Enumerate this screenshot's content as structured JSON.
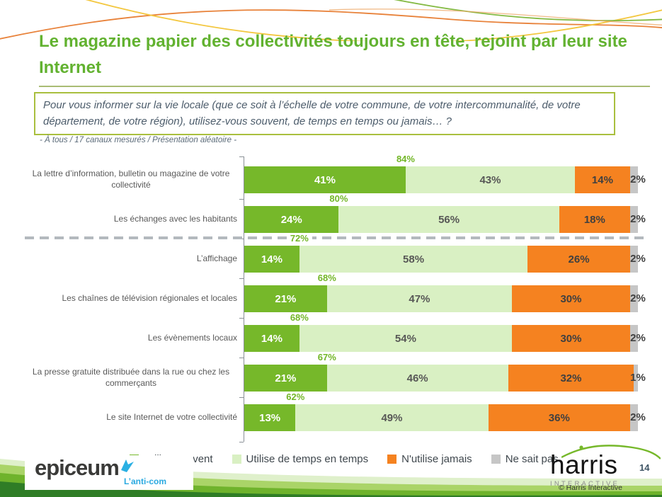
{
  "slide": {
    "title": "Le magazine papier des collectivités toujours en tête, rejoint par leur site Internet",
    "question": "Pour vous informer sur la vie locale (que ce soit à l’échelle de votre commune, de votre intercommunalité, de votre département, de votre région), utilisez-vous souvent, de temps en temps ou jamais… ?",
    "note": "- À tous / 17 canaux mesurés / Présentation aléatoire -",
    "page_number": "14",
    "copyright": "© Harris Interactive"
  },
  "logos": {
    "epiceum_name": "epiceum",
    "epiceum_sub": "L’anti-com",
    "harris_name": "harris",
    "harris_sub": "INTERACTIVE"
  },
  "theme": {
    "title_green": "#62b230",
    "question_border_green": "#a9bf3e",
    "total_label_green": "#72b626",
    "dash_gray": "#b3b9be",
    "epiceum_cyan": "#29a9e0"
  },
  "chart_data": {
    "type": "bar",
    "orientation": "horizontal",
    "stacked": true,
    "xlim": [
      0,
      100
    ],
    "categories": [
      "La lettre d’information, bulletin ou magazine de votre collectivité",
      "Les échanges avec les habitants",
      "L’affichage",
      "Les chaînes de télévision régionales et locales",
      "Les évènements locaux",
      "La presse gratuite distribuée dans la rue ou chez les commerçants",
      "Le site Internet de votre collectivité"
    ],
    "series": [
      {
        "key": "utilise-souvent",
        "name": "Utilise souvent",
        "color": "#76b82a",
        "values": [
          41,
          24,
          14,
          21,
          14,
          21,
          13
        ]
      },
      {
        "key": "utilise-de-temps-en-temps",
        "name": "Utilise de temps en temps",
        "color": "#d9f0c3",
        "values": [
          43,
          56,
          58,
          47,
          54,
          46,
          49
        ]
      },
      {
        "key": "n-utilise-jamais",
        "name": "N'utilise jamais",
        "color": "#f58220",
        "values": [
          14,
          18,
          26,
          30,
          30,
          32,
          36
        ]
      },
      {
        "key": "ne-sait-pas",
        "name": "Ne sait pas",
        "color": "#c6c6c6",
        "values": [
          2,
          2,
          2,
          2,
          2,
          1,
          2
        ]
      }
    ],
    "totals": [
      84,
      80,
      72,
      68,
      68,
      67,
      62
    ],
    "separator_after_row": 2,
    "legend_position": "bottom"
  }
}
